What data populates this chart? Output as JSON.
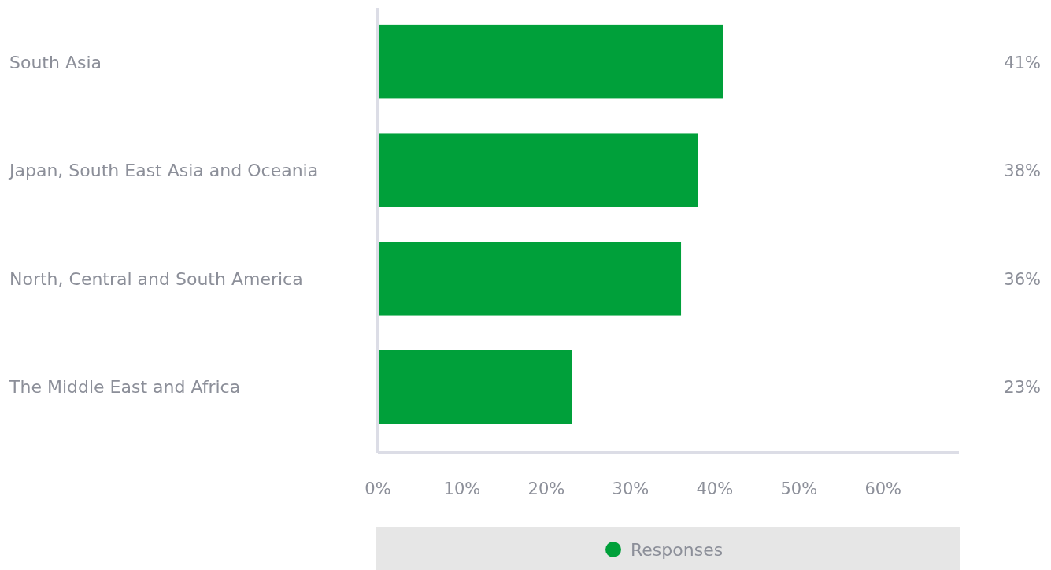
{
  "chart_data": {
    "type": "bar",
    "orientation": "horizontal",
    "categories": [
      "South Asia",
      "Japan, South East Asia and Oceania",
      "North, Central and South America",
      "The Middle East and Africa"
    ],
    "series": [
      {
        "name": "Responses",
        "color": "#00a03a",
        "values": [
          41,
          38,
          36,
          23
        ]
      }
    ],
    "xlim": [
      0,
      69
    ],
    "xticks": [
      {
        "value": 0,
        "label": "0%"
      },
      {
        "value": 10,
        "label": "10%"
      },
      {
        "value": 20,
        "label": "20%"
      },
      {
        "value": 30,
        "label": "30%"
      },
      {
        "value": 40,
        "label": "40%"
      },
      {
        "value": 50,
        "label": "50%"
      },
      {
        "value": 60,
        "label": "60%"
      }
    ],
    "value_labels": [
      "41%",
      "38%",
      "36%",
      "23%"
    ],
    "grid": false,
    "legend": "bottom"
  }
}
